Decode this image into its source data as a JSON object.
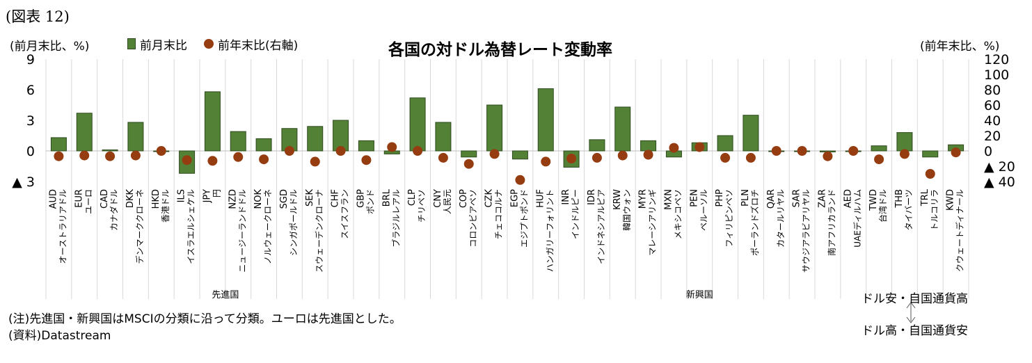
{
  "figure_label": "(図表 12)",
  "notes": {
    "note": "(注)先進国・新興国はMSCIの分類に沿って分類。ユーロは先進国とした。",
    "source": "(資料)Datastream"
  },
  "annotation": {
    "top": "ドル安・自国通貨高",
    "bottom": "ドル高・自国通貨安"
  },
  "chart_data": {
    "type": "bar",
    "title": "各国の対ドル為替レート変動率",
    "left_axis_label": "(前月末比、%)",
    "right_axis_label": "(前年末比、%)",
    "legend": {
      "bar": "前月末比",
      "dot": "前年末比(右軸)"
    },
    "colors": {
      "bar": "#538135",
      "bar_border": "#2e4a1e",
      "dot": "#963c11"
    },
    "y_left": {
      "min": -3,
      "max": 9,
      "ticks": [
        {
          "value": 9,
          "label": "9"
        },
        {
          "value": 6,
          "label": "6"
        },
        {
          "value": 3,
          "label": "3"
        },
        {
          "value": 0,
          "label": "0"
        },
        {
          "value": -3,
          "label": "▲ 3"
        }
      ]
    },
    "y_right": {
      "min": -40,
      "max": 120,
      "ticks": [
        {
          "value": 120,
          "label": "120"
        },
        {
          "value": 100,
          "label": "100"
        },
        {
          "value": 80,
          "label": "80"
        },
        {
          "value": 60,
          "label": "60"
        },
        {
          "value": 40,
          "label": "40"
        },
        {
          "value": 20,
          "label": "20"
        },
        {
          "value": 0,
          "label": "0"
        },
        {
          "value": -20,
          "label": "▲ 20"
        },
        {
          "value": -40,
          "label": "▲ 40"
        }
      ]
    },
    "groups": [
      {
        "label": "先進国",
        "start": 0,
        "end": 13
      },
      {
        "label": "新興国",
        "start": 14,
        "end": 36
      }
    ],
    "categories": [
      {
        "code": "AUD",
        "name": "オーストラリアドル",
        "bar": 1.3,
        "dot": -7
      },
      {
        "code": "EUR",
        "name": "ユーロ",
        "bar": 3.7,
        "dot": -6
      },
      {
        "code": "CAD",
        "name": "カナダドル",
        "bar": 0.1,
        "dot": -7
      },
      {
        "code": "DKK",
        "name": "デンマーククローネ",
        "bar": 2.8,
        "dot": -6
      },
      {
        "code": "HKD",
        "name": "香港ドル",
        "bar": 0.0,
        "dot": 0
      },
      {
        "code": "ILS",
        "name": "イスラエルシェケル",
        "bar": -2.2,
        "dot": -12
      },
      {
        "code": "JPY",
        "name": "円",
        "bar": 5.8,
        "dot": -13
      },
      {
        "code": "NZD",
        "name": "ニュージーランドドル",
        "bar": 1.9,
        "dot": -8
      },
      {
        "code": "NOK",
        "name": "ノルウェークローネ",
        "bar": 1.2,
        "dot": -11
      },
      {
        "code": "SGD",
        "name": "シンガポールドル",
        "bar": 2.2,
        "dot": 0
      },
      {
        "code": "SEK",
        "name": "スウェーデンクローナ",
        "bar": 2.4,
        "dot": -14
      },
      {
        "code": "CHF",
        "name": "スイスフラン",
        "bar": 3.0,
        "dot": 0
      },
      {
        "code": "GBP",
        "name": "ポンド",
        "bar": 1.0,
        "dot": -12
      },
      {
        "code": "BRL",
        "name": "ブラジルレアル",
        "bar": -0.3,
        "dot": 5
      },
      {
        "code": "CLP",
        "name": "チリペソ",
        "bar": 5.2,
        "dot": 0
      },
      {
        "code": "CNY",
        "name": "人民元",
        "bar": 2.8,
        "dot": -9
      },
      {
        "code": "COP",
        "name": "コロンビアペソ",
        "bar": -0.6,
        "dot": -17
      },
      {
        "code": "CZK",
        "name": "チェココルナ",
        "bar": 4.5,
        "dot": -4
      },
      {
        "code": "EGP",
        "name": "エジプトポンド",
        "bar": -0.8,
        "dot": -38
      },
      {
        "code": "HUF",
        "name": "ハンガリーフォリント",
        "bar": 6.1,
        "dot": -14
      },
      {
        "code": "INR",
        "name": "インドルピー",
        "bar": -1.6,
        "dot": -10
      },
      {
        "code": "IDR",
        "name": "インドネシアルピア",
        "bar": 1.1,
        "dot": -9
      },
      {
        "code": "KRW",
        "name": "韓国ウォン",
        "bar": 4.3,
        "dot": -6
      },
      {
        "code": "MYR",
        "name": "マレーシアリンギ",
        "bar": 1.0,
        "dot": -5
      },
      {
        "code": "MXN",
        "name": "メキシコペソ",
        "bar": -0.6,
        "dot": 4
      },
      {
        "code": "PEN",
        "name": "ペルーソル",
        "bar": 0.8,
        "dot": 5
      },
      {
        "code": "PHP",
        "name": "フィリピンペソ",
        "bar": 1.5,
        "dot": -9
      },
      {
        "code": "PLN",
        "name": "ポーランドズロチ",
        "bar": 3.5,
        "dot": -9
      },
      {
        "code": "QAR",
        "name": "カタールリヤル",
        "bar": 0.0,
        "dot": 0
      },
      {
        "code": "SAR",
        "name": "サウジアラビアリヤル",
        "bar": 0.0,
        "dot": 0
      },
      {
        "code": "ZAR",
        "name": "南アフリカランド",
        "bar": -0.1,
        "dot": -7
      },
      {
        "code": "AED",
        "name": "UAEディルハム",
        "bar": 0.0,
        "dot": 0
      },
      {
        "code": "TWD",
        "name": "台湾ドル",
        "bar": 0.5,
        "dot": -11
      },
      {
        "code": "THB",
        "name": "タイバーツ",
        "bar": 1.8,
        "dot": -4
      },
      {
        "code": "TRL",
        "name": "トルコリラ",
        "bar": -0.6,
        "dot": -30
      },
      {
        "code": "KWD",
        "name": "クウェートディナール",
        "bar": 0.6,
        "dot": -2
      }
    ]
  }
}
